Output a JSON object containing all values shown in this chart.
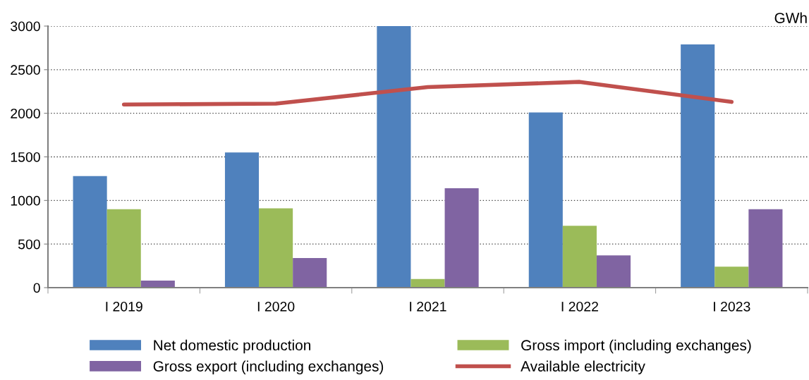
{
  "chart_data": {
    "type": "bar",
    "ylabel": "GWh",
    "categories": [
      "I 2019",
      "I 2020",
      "I 2021",
      "I 2022",
      "I 2023"
    ],
    "series": [
      {
        "name": "Net domestic production",
        "color": "#4f81bd",
        "values": [
          1280,
          1550,
          3000,
          2010,
          2790
        ]
      },
      {
        "name": "Gross import (including exchanges)",
        "color": "#9bbb59",
        "values": [
          900,
          910,
          100,
          710,
          240
        ]
      },
      {
        "name": "Gross export (including exchanges)",
        "color": "#8064a2",
        "values": [
          80,
          340,
          1140,
          370,
          900
        ]
      },
      {
        "name": "Available electricity",
        "type": "line",
        "color": "#c0504d",
        "values": [
          2100,
          2110,
          2300,
          2360,
          2130
        ]
      }
    ],
    "ylim": [
      0,
      3000
    ],
    "yticks": [
      0,
      500,
      1000,
      1500,
      2000,
      2500,
      3000
    ],
    "grid": "y",
    "legend": "bottom",
    "marker": "none",
    "line_style": "solid"
  }
}
